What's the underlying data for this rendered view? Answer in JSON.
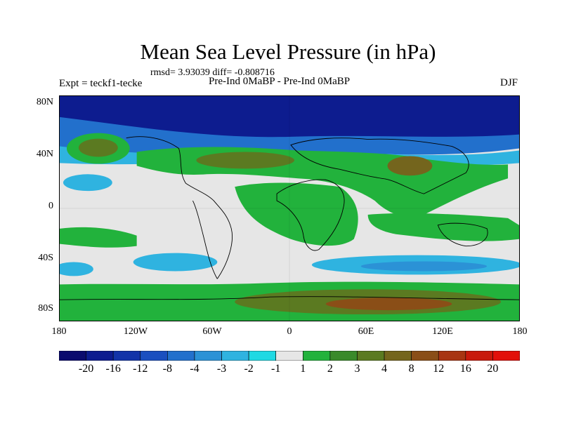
{
  "title": "Mean Sea Level Pressure (in hPa)",
  "stats": "rmsd= 3.93039 diff= -0.808716",
  "expt_label": "Expt = teckf1-tecke",
  "comparison_label": "Pre-Ind 0MaBP - Pre-Ind 0MaBP",
  "season_label": "DJF",
  "lat_labels": [
    "80N",
    "40N",
    "0",
    "40S",
    "80S"
  ],
  "lon_labels": [
    "180",
    "120W",
    "60W",
    "0",
    "60E",
    "120E",
    "180"
  ],
  "colorbar": {
    "labels": [
      "-20",
      "-16",
      "-12",
      "-8",
      "-4",
      "-3",
      "-2",
      "-1",
      "1",
      "2",
      "3",
      "4",
      "8",
      "12",
      "16",
      "20"
    ],
    "colors": [
      "#0b0b6e",
      "#0d1c8f",
      "#1233a8",
      "#1a4fbf",
      "#2270cc",
      "#2b92d6",
      "#2fb3e0",
      "#1fd9e3",
      "#e6e6e6",
      "#22b23c",
      "#3a8a2a",
      "#5b7a21",
      "#74651d",
      "#8a4e17",
      "#a83512",
      "#c81a0c",
      "#e2100a"
    ]
  }
}
